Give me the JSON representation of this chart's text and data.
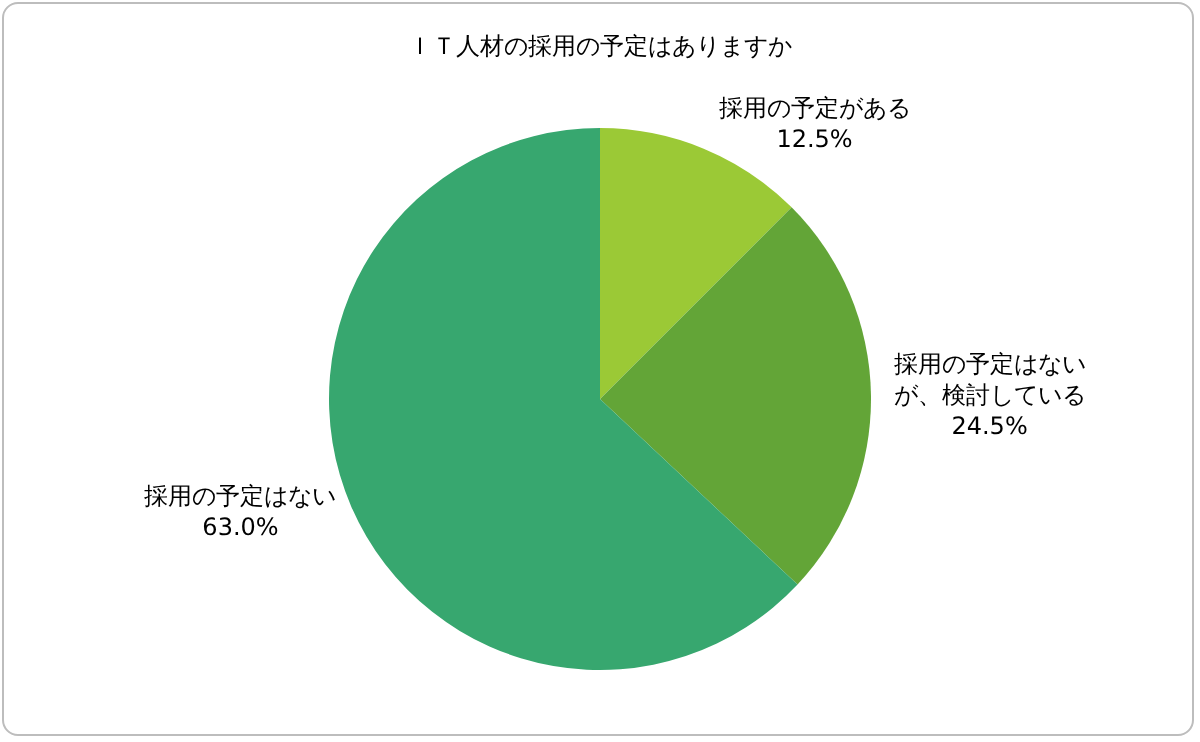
{
  "chart_data": {
    "type": "pie",
    "title": "ＩＴ人材の採用の予定はありますか",
    "categories": [
      "採用の予定がある",
      "採用の予定はないが、検討している",
      "採用の予定はない"
    ],
    "values": [
      12.5,
      24.5,
      63.0
    ],
    "colors": [
      "#9bc936",
      "#63a537",
      "#37a76f"
    ],
    "value_labels": [
      "12.5%",
      "24.5%",
      "63.0%"
    ],
    "legend": false
  }
}
